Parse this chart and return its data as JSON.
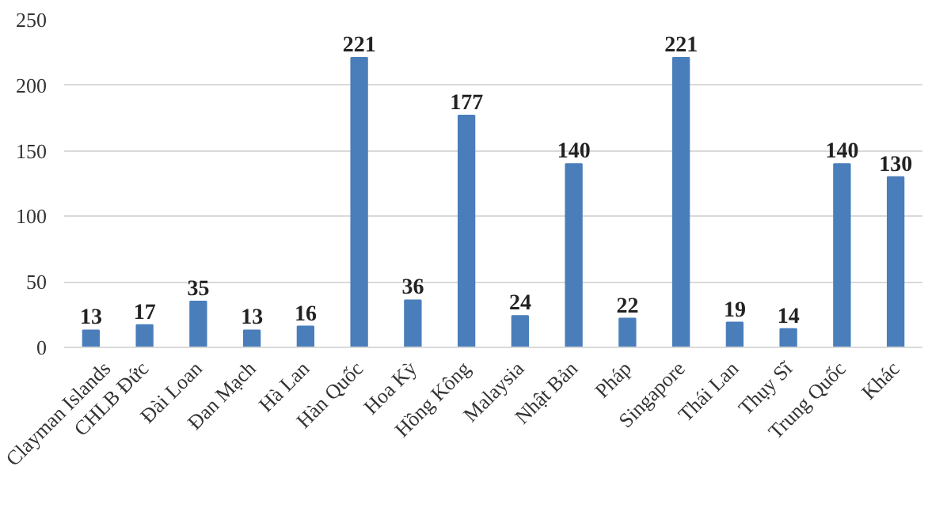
{
  "chart_data": {
    "type": "bar",
    "categories": [
      "Clayman Islands",
      "CHLB Đức",
      "Đài Loan",
      "Đan Mạch",
      "Hà Lan",
      "Hàn Quốc",
      "Hoa Kỳ",
      "Hồng Kông",
      "Malaysia",
      "Nhật Bản",
      "Pháp",
      "Singapore",
      "Thái Lan",
      "Thụy Sĩ",
      "Trung Quốc",
      "Khác"
    ],
    "values": [
      13,
      17,
      35,
      13,
      16,
      221,
      36,
      177,
      24,
      140,
      22,
      221,
      19,
      14,
      140,
      130
    ],
    "color": "#4a7ebb",
    "ylim": [
      0,
      250
    ],
    "yticks": [
      0,
      50,
      100,
      150,
      200,
      250
    ],
    "grid": "y",
    "data_labels": true
  }
}
